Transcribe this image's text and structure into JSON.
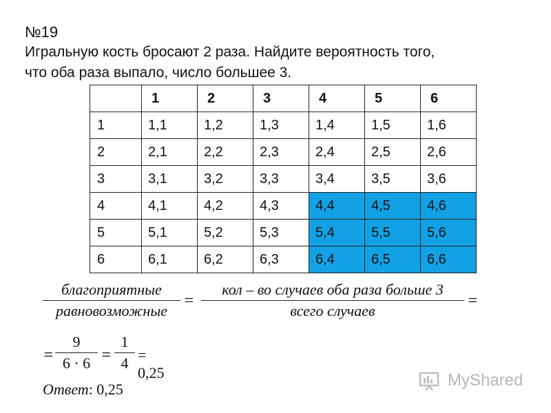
{
  "problem": {
    "number": "№19",
    "text_line1": "Игральную кость бросают 2 раза. Найдите вероятность того,",
    "text_line2": "что оба раза выпало, число большее 3."
  },
  "table": {
    "corner": "",
    "columns": [
      "1",
      "2",
      "3",
      "4",
      "5",
      "6"
    ],
    "rows": [
      {
        "header": "1",
        "cells": [
          "1,1",
          "1,2",
          "1,3",
          "1,4",
          "1,5",
          "1,6"
        ],
        "favorable": [
          false,
          false,
          false,
          false,
          false,
          false
        ]
      },
      {
        "header": "2",
        "cells": [
          "2,1",
          "2,2",
          "2,3",
          "2,4",
          "2,5",
          "2,6"
        ],
        "favorable": [
          false,
          false,
          false,
          false,
          false,
          false
        ]
      },
      {
        "header": "3",
        "cells": [
          "3,1",
          "3,2",
          "3,3",
          "3,4",
          "3,5",
          "3,6"
        ],
        "favorable": [
          false,
          false,
          false,
          false,
          false,
          false
        ]
      },
      {
        "header": "4",
        "cells": [
          "4,1",
          "4,2",
          "4,3",
          "4,4",
          "4,5",
          "4,6"
        ],
        "favorable": [
          false,
          false,
          false,
          true,
          true,
          true
        ]
      },
      {
        "header": "5",
        "cells": [
          "5,1",
          "5,2",
          "5,3",
          "5,4",
          "5,5",
          "5,6"
        ],
        "favorable": [
          false,
          false,
          false,
          true,
          true,
          true
        ]
      },
      {
        "header": "6",
        "cells": [
          "6,1",
          "6,2",
          "6,3",
          "6,4",
          "6,5",
          "6,6"
        ],
        "favorable": [
          false,
          false,
          false,
          true,
          true,
          true
        ]
      }
    ],
    "highlight_color": "#12a1e5"
  },
  "formula": {
    "frac1_num": "благоприятные",
    "frac1_den": "равновозможные",
    "eq": "=",
    "frac2_num": "кол – во случаев оба раза больше 3",
    "frac2_den": "всего случаев",
    "eq_end": "=",
    "frac3_num": "9",
    "frac3_den": "6 · 6",
    "frac4_num": "1",
    "frac4_den": "4",
    "result": "= 0,25"
  },
  "answer": {
    "label": "Ответ",
    "value": ": 0,25"
  },
  "watermark": {
    "text": "MyShared",
    "icon": "myshared-logo-icon"
  }
}
